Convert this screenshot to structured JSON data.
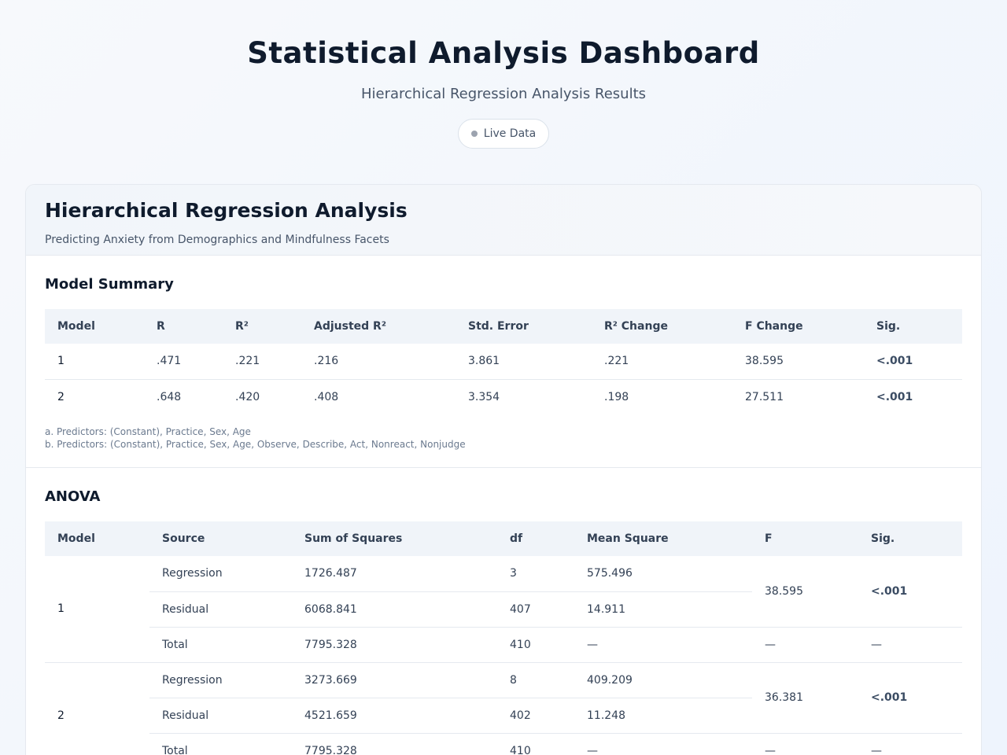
{
  "header": {
    "title": "Statistical Analysis Dashboard",
    "subtitle": "Hierarchical Regression Analysis Results",
    "badge": "Live Data"
  },
  "card": {
    "title": "Hierarchical Regression Analysis",
    "description": "Predicting Anxiety from Demographics and Mindfulness Facets"
  },
  "model_summary": {
    "title": "Model Summary",
    "columns": [
      "Model",
      "R",
      "R²",
      "Adjusted R²",
      "Std. Error",
      "R² Change",
      "F Change",
      "Sig."
    ],
    "rows": [
      [
        "1",
        ".471",
        ".221",
        ".216",
        "3.861",
        ".221",
        "38.595",
        "<.001"
      ],
      [
        "2",
        ".648",
        ".420",
        ".408",
        "3.354",
        ".198",
        "27.511",
        "<.001"
      ]
    ],
    "notes": [
      "a. Predictors: (Constant), Practice, Sex, Age",
      "b. Predictors: (Constant), Practice, Sex, Age, Observe, Describe, Act, Nonreact, Nonjudge"
    ]
  },
  "anova": {
    "title": "ANOVA",
    "columns": [
      "Model",
      "Source",
      "Sum of Squares",
      "df",
      "Mean Square",
      "F",
      "Sig."
    ],
    "models": [
      {
        "model": "1",
        "rows": [
          {
            "source": "Regression",
            "ss": "1726.487",
            "df": "3",
            "ms": "575.496"
          },
          {
            "source": "Residual",
            "ss": "6068.841",
            "df": "407",
            "ms": "14.911"
          },
          {
            "source": "Total",
            "ss": "7795.328",
            "df": "410",
            "ms": "—"
          }
        ],
        "f": "38.595",
        "sig": "<.001",
        "total_f": "—",
        "total_sig": "—"
      },
      {
        "model": "2",
        "rows": [
          {
            "source": "Regression",
            "ss": "3273.669",
            "df": "8",
            "ms": "409.209"
          },
          {
            "source": "Residual",
            "ss": "4521.659",
            "df": "402",
            "ms": "11.248"
          },
          {
            "source": "Total",
            "ss": "7795.328",
            "df": "410",
            "ms": "—"
          }
        ],
        "f": "36.381",
        "sig": "<.001",
        "total_f": "—",
        "total_sig": "—"
      }
    ]
  }
}
